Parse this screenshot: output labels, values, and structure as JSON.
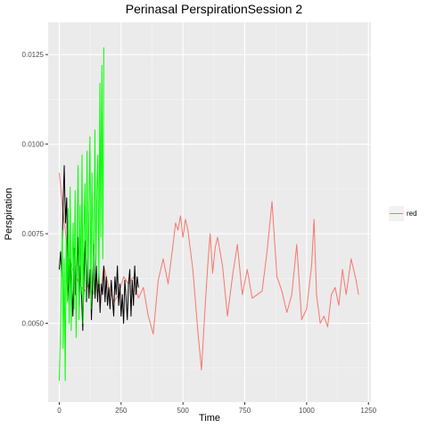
{
  "chart_data": {
    "type": "line",
    "title": "Perinasal PerspirationSession 2",
    "xlabel": "Time",
    "ylabel": "Perspiration",
    "xlim": [
      -45,
      1260
    ],
    "ylim": [
      0.0028,
      0.0134
    ],
    "x_ticks": [
      0,
      250,
      500,
      750,
      1000,
      1250
    ],
    "y_ticks": [
      0.005,
      0.0075,
      0.01,
      0.0125
    ],
    "x_tick_labels": [
      "0",
      "250",
      "500",
      "750",
      "1000",
      "1250"
    ],
    "y_tick_labels": [
      "0.0050",
      "0.0075",
      "0.0100",
      "0.0125"
    ],
    "grid": true,
    "legend": {
      "position": "right",
      "entries": [
        {
          "label": "red",
          "color": "#f8766d"
        }
      ]
    },
    "series": [
      {
        "color": "#f8766d",
        "x": [
          0,
          10,
          20,
          30,
          40,
          50,
          60,
          75,
          90,
          105,
          120,
          135,
          150,
          165,
          180,
          200,
          220,
          240,
          260,
          280,
          300,
          320,
          340,
          360,
          380,
          400,
          420,
          440,
          460,
          470,
          480,
          490,
          500,
          510,
          520,
          540,
          560,
          575,
          590,
          600,
          610,
          620,
          630,
          640,
          660,
          680,
          700,
          720,
          740,
          760,
          780,
          800,
          820,
          840,
          860,
          880,
          900,
          920,
          940,
          960,
          980,
          1000,
          1020,
          1030,
          1040,
          1055,
          1070,
          1085,
          1100,
          1115,
          1130,
          1145,
          1160,
          1180,
          1200,
          1210
        ],
        "y": [
          0.0092,
          0.0085,
          0.0078,
          0.0073,
          0.0069,
          0.0066,
          0.0064,
          0.0062,
          0.006,
          0.0059,
          0.0061,
          0.0058,
          0.0063,
          0.0057,
          0.0066,
          0.006,
          0.0056,
          0.0058,
          0.0063,
          0.0061,
          0.0063,
          0.0057,
          0.006,
          0.0052,
          0.0047,
          0.0062,
          0.0068,
          0.0061,
          0.0072,
          0.0078,
          0.0076,
          0.008,
          0.0074,
          0.0079,
          0.0076,
          0.0065,
          0.0048,
          0.0037,
          0.0055,
          0.0066,
          0.0075,
          0.0064,
          0.0071,
          0.0074,
          0.0066,
          0.0052,
          0.0063,
          0.0072,
          0.0058,
          0.0065,
          0.0057,
          0.0058,
          0.0059,
          0.007,
          0.0084,
          0.0063,
          0.0059,
          0.0053,
          0.0058,
          0.0072,
          0.0051,
          0.0054,
          0.0066,
          0.0079,
          0.0058,
          0.005,
          0.0052,
          0.0049,
          0.0058,
          0.006,
          0.0055,
          0.0065,
          0.0058,
          0.0068,
          0.0062,
          0.0058
        ]
      },
      {
        "color": "#000000",
        "x": [
          0,
          5,
          10,
          15,
          20,
          25,
          30,
          35,
          40,
          45,
          50,
          55,
          60,
          65,
          70,
          75,
          80,
          85,
          90,
          95,
          100,
          105,
          110,
          115,
          120,
          125,
          130,
          135,
          140,
          145,
          150,
          155,
          160,
          165,
          170,
          175,
          180,
          185,
          190,
          195,
          200,
          205,
          210,
          215,
          220,
          225,
          230,
          235,
          240,
          245,
          250,
          255,
          260,
          265,
          270,
          275,
          280,
          285,
          290,
          295,
          300,
          305,
          310,
          315,
          320
        ],
        "y": [
          0.0065,
          0.007,
          0.0063,
          0.0082,
          0.0094,
          0.0078,
          0.0085,
          0.0061,
          0.0055,
          0.0068,
          0.006,
          0.0052,
          0.0071,
          0.0058,
          0.0065,
          0.0074,
          0.0055,
          0.0066,
          0.0058,
          0.0048,
          0.0063,
          0.0073,
          0.0056,
          0.0068,
          0.0057,
          0.0065,
          0.0051,
          0.0062,
          0.0072,
          0.0057,
          0.0066,
          0.0056,
          0.0064,
          0.0053,
          0.0061,
          0.0058,
          0.0066,
          0.0056,
          0.0063,
          0.0055,
          0.006,
          0.0054,
          0.0062,
          0.0057,
          0.0052,
          0.0063,
          0.0058,
          0.0066,
          0.0055,
          0.0061,
          0.0052,
          0.0058,
          0.005,
          0.0062,
          0.0057,
          0.0051,
          0.0061,
          0.0065,
          0.0052,
          0.0062,
          0.0055,
          0.0066,
          0.0058,
          0.0063,
          0.006
        ]
      },
      {
        "color": "#00ff00",
        "x": [
          0,
          4,
          8,
          12,
          16,
          20,
          24,
          28,
          32,
          36,
          40,
          44,
          48,
          52,
          56,
          60,
          64,
          68,
          72,
          76,
          80,
          84,
          88,
          92,
          96,
          100,
          104,
          108,
          112,
          116,
          120,
          124,
          128,
          132,
          136,
          140,
          144,
          148,
          152,
          156,
          160,
          164,
          168,
          172,
          176,
          180
        ],
        "y": [
          0.0034,
          0.0046,
          0.0058,
          0.0076,
          0.0043,
          0.0068,
          0.0034,
          0.0074,
          0.0056,
          0.0082,
          0.005,
          0.0088,
          0.0048,
          0.0066,
          0.0078,
          0.0054,
          0.0087,
          0.0046,
          0.0072,
          0.0094,
          0.0051,
          0.0083,
          0.0058,
          0.0097,
          0.005,
          0.0076,
          0.0089,
          0.0057,
          0.0098,
          0.0061,
          0.0082,
          0.0102,
          0.0054,
          0.0092,
          0.0072,
          0.0058,
          0.0104,
          0.0066,
          0.0086,
          0.0097,
          0.0061,
          0.0117,
          0.0074,
          0.0122,
          0.0068,
          0.0127
        ]
      }
    ]
  }
}
